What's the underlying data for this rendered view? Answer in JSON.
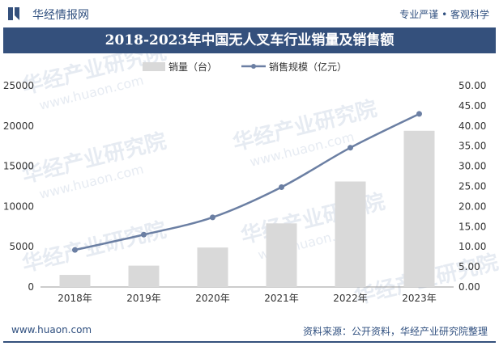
{
  "header": {
    "brand": "华经情报网",
    "tagline": "专业严谨 • 客观科学"
  },
  "footer": {
    "site": "www.huaon.com",
    "source": "资料来源：公开资料，华经产业研究院整理"
  },
  "watermark": {
    "text": "华经产业研究院",
    "url": "www.huaon.com"
  },
  "colors": {
    "bar": "#d9d9d9",
    "line": "#6b7fa3",
    "title_bg": "#34507c"
  },
  "chart_data": {
    "type": "bar",
    "title": "2018-2023年中国无人叉车行业销量及销售额",
    "categories": [
      "2018年",
      "2019年",
      "2020年",
      "2021年",
      "2022年",
      "2023年"
    ],
    "series": [
      {
        "name": "销量（台）",
        "type": "bar",
        "axis": "left",
        "values": [
          1500,
          2650,
          4900,
          7900,
          13100,
          19400
        ]
      },
      {
        "name": "销售规模（亿元）",
        "type": "line",
        "axis": "right",
        "values": [
          9.2,
          13.0,
          17.3,
          24.8,
          34.6,
          43.0
        ]
      }
    ],
    "y_left": {
      "min": 0,
      "max": 25000,
      "ticks": [
        "0",
        "5000",
        "10000",
        "15000",
        "20000",
        "25000"
      ]
    },
    "y_right": {
      "min": 0,
      "max": 50,
      "ticks": [
        "0.00",
        "5.00",
        "10.00",
        "15.00",
        "20.00",
        "25.00",
        "30.00",
        "35.00",
        "40.00",
        "45.00",
        "50.00"
      ]
    },
    "legend": "top-center",
    "grid": false
  }
}
